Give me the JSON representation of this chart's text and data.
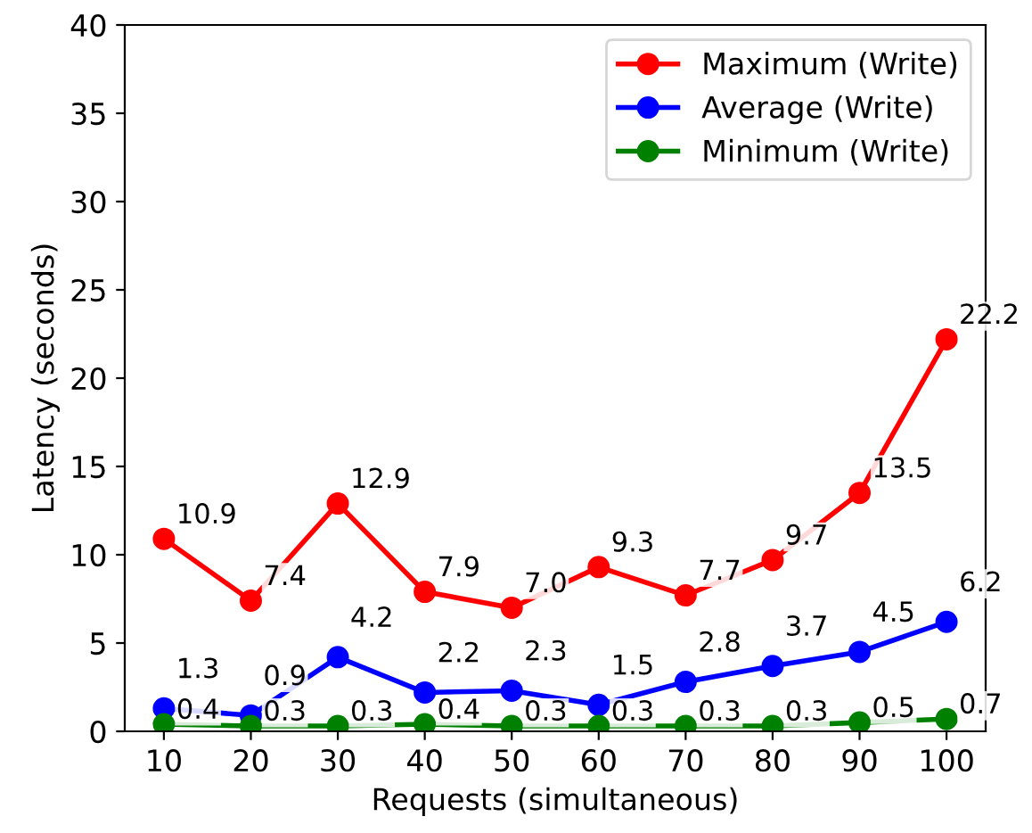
{
  "chart_data": {
    "type": "line",
    "xlabel": "Requests (simultaneous)",
    "ylabel": "Latency (seconds)",
    "x": [
      10,
      20,
      30,
      40,
      50,
      60,
      70,
      80,
      90,
      100
    ],
    "series": [
      {
        "name": "Maximum (Write)",
        "color": "#ff0000",
        "values": [
          10.9,
          7.4,
          12.9,
          7.9,
          7.0,
          9.3,
          7.7,
          9.7,
          13.5,
          22.2
        ],
        "value_labels": [
          "10.9",
          "7.4",
          "12.9",
          "7.9",
          "7.0",
          "9.3",
          "7.7",
          "9.7",
          "13.5",
          "22.2"
        ]
      },
      {
        "name": "Average (Write)",
        "color": "#0000ff",
        "values": [
          1.3,
          0.9,
          4.2,
          2.2,
          2.3,
          1.5,
          2.8,
          3.7,
          4.5,
          6.2
        ],
        "value_labels": [
          "1.3",
          "0.9",
          "4.2",
          "2.2",
          "2.3",
          "1.5",
          "2.8",
          "3.7",
          "4.5",
          "6.2"
        ]
      },
      {
        "name": "Minimum (Write)",
        "color": "#008000",
        "values": [
          0.4,
          0.3,
          0.3,
          0.4,
          0.3,
          0.3,
          0.3,
          0.3,
          0.5,
          0.7
        ],
        "value_labels": [
          "0.4",
          "0.3",
          "0.3",
          "0.4",
          "0.3",
          "0.3",
          "0.3",
          "0.3",
          "0.5",
          "0.7"
        ]
      }
    ],
    "xlim": [
      5.5,
      104.5
    ],
    "xticks": [
      10,
      20,
      30,
      40,
      50,
      60,
      70,
      80,
      90,
      100
    ],
    "ylim": [
      0,
      40
    ],
    "yticks": [
      0,
      5,
      10,
      15,
      20,
      25,
      30,
      35,
      40
    ],
    "grid": false,
    "legend": "top right",
    "marker": "circle",
    "line_style": "solid"
  }
}
